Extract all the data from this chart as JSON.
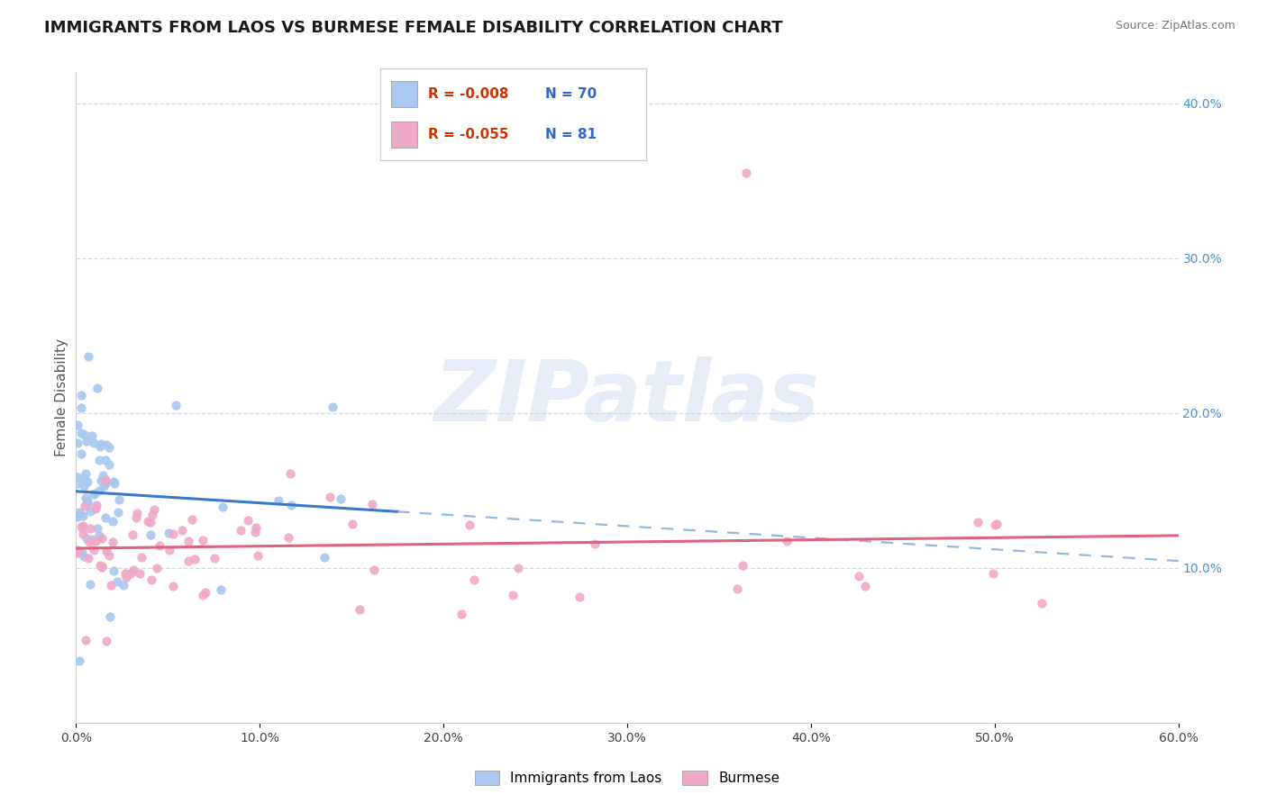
{
  "title": "IMMIGRANTS FROM LAOS VS BURMESE FEMALE DISABILITY CORRELATION CHART",
  "source": "Source: ZipAtlas.com",
  "ylabel": "Female Disability",
  "legend_labels": [
    "Immigrants from Laos",
    "Burmese"
  ],
  "laos_R": -0.008,
  "laos_N": 70,
  "burmese_R": -0.055,
  "burmese_N": 81,
  "xlim": [
    0.0,
    0.6
  ],
  "ylim": [
    0.0,
    0.42
  ],
  "laos_color": "#a8c8f0",
  "burmese_color": "#f0a8c8",
  "laos_line_color": "#3a78c9",
  "burmese_line_color": "#e06080",
  "laos_dash_color": "#90b8e0",
  "background_color": "#ffffff",
  "grid_color": "#d0d8e8",
  "right_tick_color": "#5090d0"
}
